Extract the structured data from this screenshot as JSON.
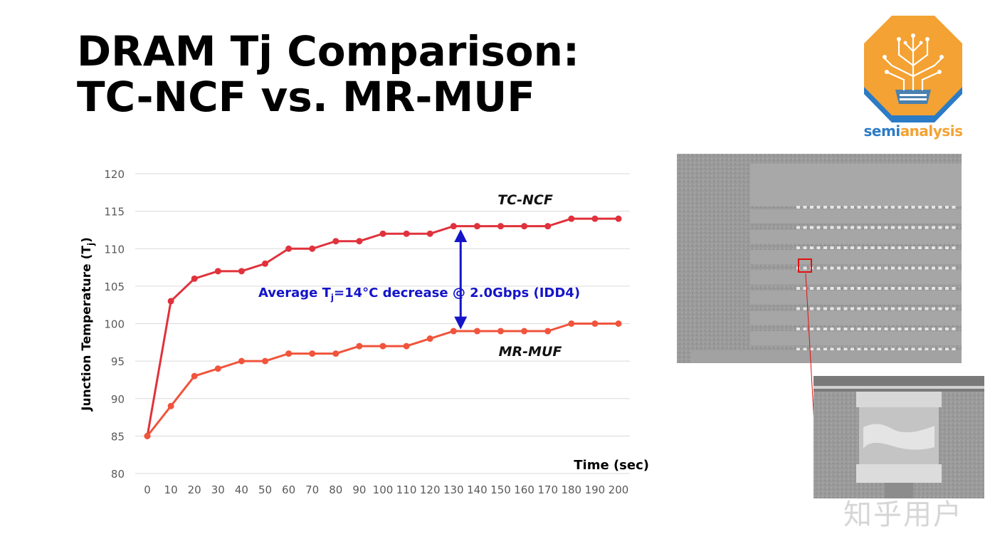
{
  "slide": {
    "title_line1": "DRAM Tj Comparison:",
    "title_line2": "TC-NCF vs. MR-MUF",
    "logo_text_a": "semi",
    "logo_text_b": "analysis",
    "watermark": "知乎用户"
  },
  "chart_data": {
    "type": "line",
    "ylabel": "Junction Temperature (Tj)",
    "xlabel": "Time (sec)",
    "ylim": [
      80,
      120
    ],
    "yticks": [
      80,
      85,
      90,
      95,
      100,
      105,
      110,
      115,
      120
    ],
    "x": [
      0,
      10,
      20,
      30,
      40,
      50,
      60,
      70,
      80,
      90,
      100,
      110,
      120,
      130,
      140,
      150,
      160,
      170,
      180,
      190,
      200
    ],
    "grid": true,
    "series": [
      {
        "name": "TC-NCF",
        "color": "#e0323c",
        "values": [
          85,
          103,
          106,
          107,
          107,
          108,
          110,
          110,
          111,
          111,
          112,
          112,
          112,
          113,
          113,
          113,
          113,
          113,
          114,
          114,
          114
        ]
      },
      {
        "name": "MR-MUF",
        "color": "#f0543c",
        "values": [
          85,
          89,
          93,
          94,
          95,
          95,
          96,
          96,
          96,
          97,
          97,
          97,
          98,
          99,
          99,
          99,
          99,
          99,
          100,
          100,
          100
        ]
      }
    ],
    "annotation": {
      "text_prefix": "Average T",
      "text_sub": "j",
      "text_suffix": "=14°C decrease @ 2.0Gbps (IDD4)",
      "x": 133,
      "y_from": 113,
      "y_to": 99,
      "color": "#1414c8"
    }
  }
}
